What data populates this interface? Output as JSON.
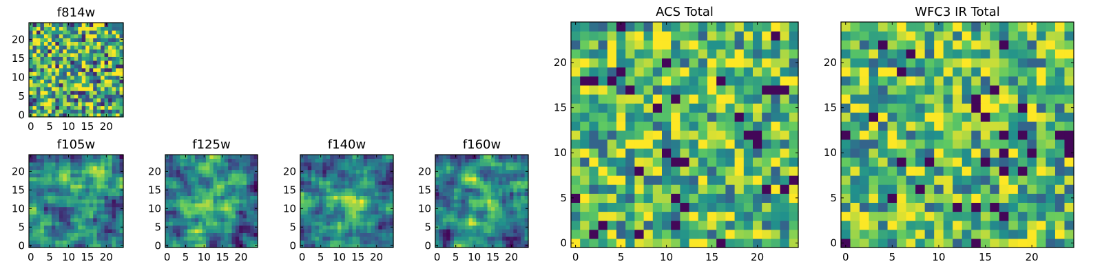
{
  "chart_data": [
    {
      "type": "heatmap",
      "title": "f814w",
      "size": 25,
      "xlim": [
        0,
        24
      ],
      "ylim": [
        0,
        24
      ],
      "xticks": [
        0,
        5,
        10,
        15,
        20
      ],
      "yticks": [
        0,
        5,
        10,
        15,
        20
      ],
      "colormap": "viridis",
      "pattern": "fine-noise"
    },
    {
      "type": "heatmap",
      "title": "f105w",
      "size": 25,
      "xlim": [
        0,
        24
      ],
      "ylim": [
        0,
        24
      ],
      "xticks": [
        0,
        5,
        10,
        15,
        20
      ],
      "yticks": [
        0,
        5,
        10,
        15,
        20
      ],
      "colormap": "viridis",
      "pattern": "smooth"
    },
    {
      "type": "heatmap",
      "title": "f125w",
      "size": 25,
      "xlim": [
        0,
        24
      ],
      "ylim": [
        0,
        24
      ],
      "xticks": [
        0,
        5,
        10,
        15,
        20
      ],
      "yticks": [
        0,
        5,
        10,
        15,
        20
      ],
      "colormap": "viridis",
      "pattern": "smooth"
    },
    {
      "type": "heatmap",
      "title": "f140w",
      "size": 25,
      "xlim": [
        0,
        24
      ],
      "ylim": [
        0,
        24
      ],
      "xticks": [
        0,
        5,
        10,
        15,
        20
      ],
      "yticks": [
        0,
        5,
        10,
        15,
        20
      ],
      "colormap": "viridis",
      "pattern": "smooth"
    },
    {
      "type": "heatmap",
      "title": "f160w",
      "size": 25,
      "xlim": [
        0,
        24
      ],
      "ylim": [
        0,
        24
      ],
      "xticks": [
        0,
        5,
        10,
        15,
        20
      ],
      "yticks": [
        0,
        5,
        10,
        15,
        20
      ],
      "colormap": "viridis",
      "pattern": "smooth"
    },
    {
      "type": "heatmap",
      "title": "ACS Total",
      "size": 25,
      "xlim": [
        0,
        24
      ],
      "ylim": [
        0,
        24
      ],
      "xticks": [
        0,
        5,
        10,
        15,
        20
      ],
      "yticks": [
        0,
        5,
        10,
        15,
        20
      ],
      "colormap": "viridis",
      "pattern": "coarse-noise"
    },
    {
      "type": "heatmap",
      "title": "WFC3 IR Total",
      "size": 25,
      "xlim": [
        0,
        24
      ],
      "ylim": [
        0,
        24
      ],
      "xticks": [
        0,
        5,
        10,
        15,
        20
      ],
      "yticks": [
        0,
        5,
        10,
        15,
        20
      ],
      "colormap": "viridis",
      "pattern": "coarse-noise"
    }
  ]
}
